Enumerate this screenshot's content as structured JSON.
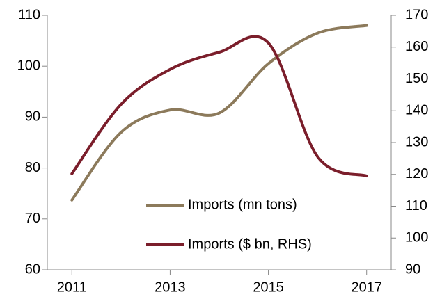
{
  "chart_data": {
    "type": "line",
    "x": [
      2011,
      2012,
      2013,
      2014,
      2015,
      2016,
      2017
    ],
    "series": [
      {
        "name": "Imports (mn tons)",
        "color": "#8c7a5b",
        "values": [
          73.7,
          87,
          91.4,
          90.8,
          100.5,
          106.5,
          108
        ]
      },
      {
        "name": "Imports ($ bn, RHS)",
        "color": "#7b1e2b",
        "axis": "y2",
        "values": [
          120.2,
          142,
          153,
          158.4,
          161.3,
          125.6,
          119.5
        ]
      }
    ],
    "xlim": [
      2010.5,
      2017.5
    ],
    "xticks": [
      2011,
      2013,
      2015,
      2017
    ],
    "ylim": [
      60,
      110
    ],
    "yticks": [
      60,
      70,
      80,
      90,
      100,
      110
    ],
    "y2lim": [
      90,
      170
    ],
    "y2ticks": [
      90,
      100,
      110,
      120,
      130,
      140,
      150,
      160,
      170
    ],
    "grid": false,
    "legend": "bottom"
  }
}
